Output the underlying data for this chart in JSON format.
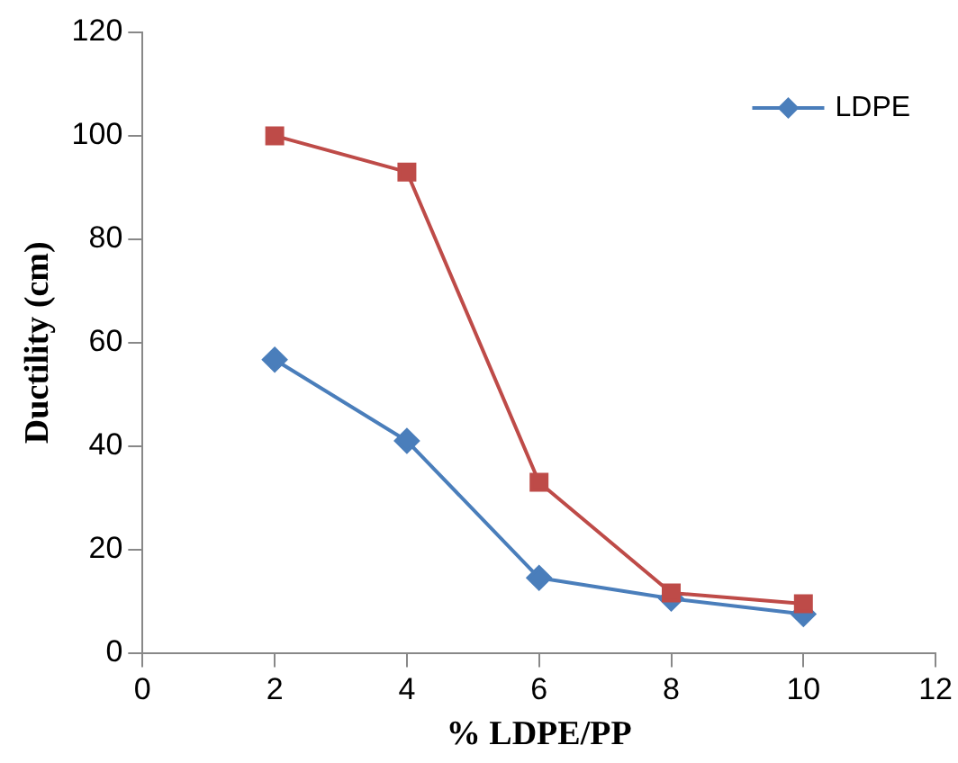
{
  "chart_data": {
    "type": "line",
    "xlabel": "% LDPE/PP",
    "ylabel": "Ductility (cm)",
    "x": [
      2,
      4,
      6,
      8,
      10
    ],
    "series": [
      {
        "name": "LDPE",
        "color": "#4a7ebb",
        "marker": "diamond",
        "values": [
          56.7,
          41,
          14.5,
          10.5,
          7.5
        ]
      },
      {
        "color": "#be4b48",
        "marker": "square",
        "values": [
          100,
          93,
          33,
          11.6,
          9.5
        ]
      }
    ],
    "xlim": [
      0,
      12
    ],
    "xticks": [
      0,
      2,
      4,
      6,
      8,
      10,
      12
    ],
    "ylim": [
      0,
      120
    ],
    "yticks": [
      0,
      20,
      40,
      60,
      80,
      100,
      120
    ],
    "grid": false,
    "legend": "top right"
  }
}
